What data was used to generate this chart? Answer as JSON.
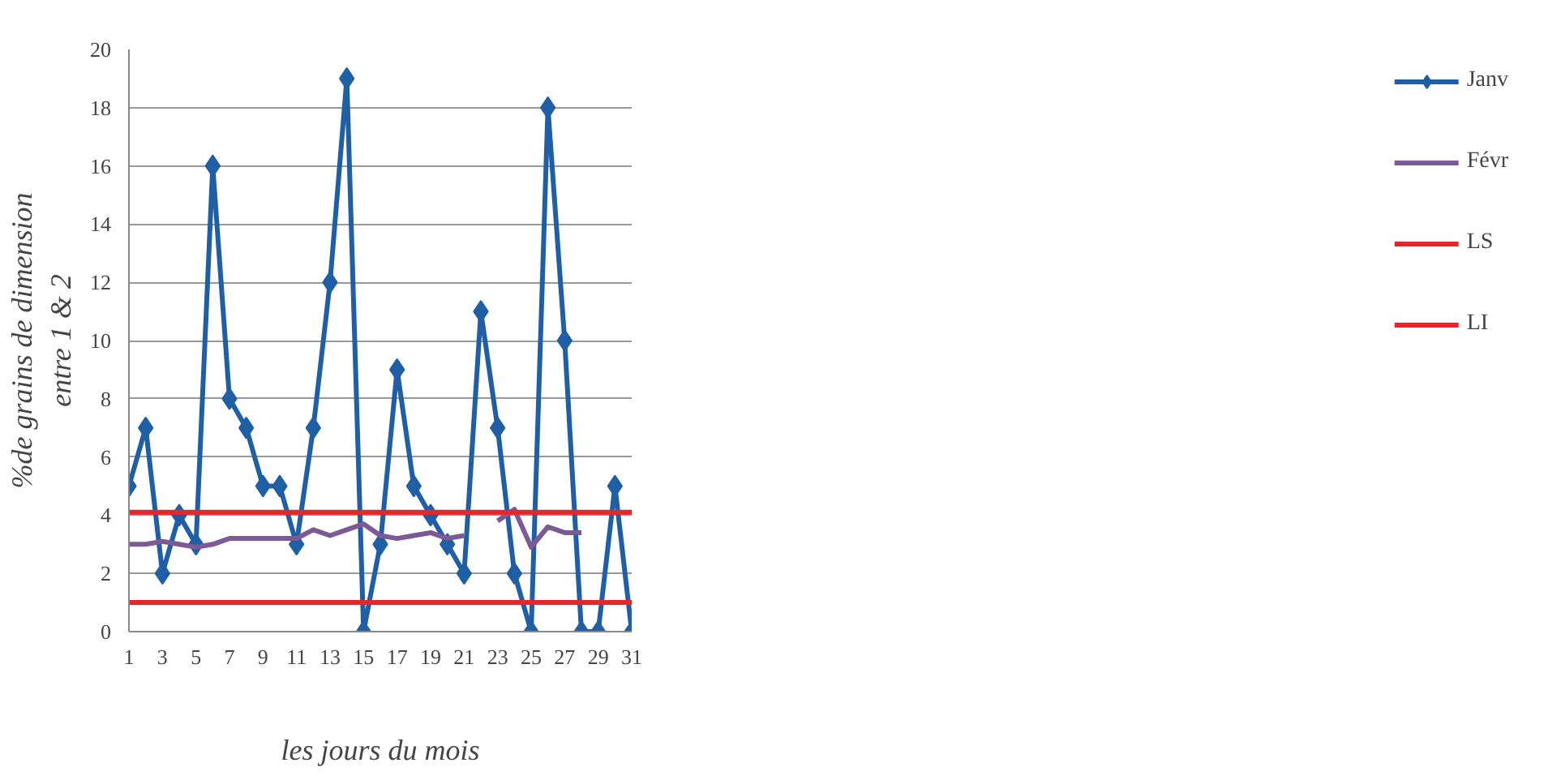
{
  "chart_data": {
    "type": "line",
    "xlabel": "les jours du mois",
    "ylabel": "%de grains de dimension\nentre 1 & 2",
    "x": [
      1,
      2,
      3,
      4,
      5,
      6,
      7,
      8,
      9,
      10,
      11,
      12,
      13,
      14,
      15,
      16,
      17,
      18,
      19,
      20,
      21,
      22,
      23,
      24,
      25,
      26,
      27,
      28,
      29,
      30,
      31
    ],
    "series": [
      {
        "name": "Janv",
        "color": "#1f5fa6",
        "marker": "diamond",
        "values": [
          5,
          7,
          2,
          4,
          3,
          16,
          8,
          7,
          5,
          5,
          3,
          7,
          12,
          19,
          0,
          3,
          9,
          5,
          4,
          3,
          2,
          11,
          7,
          2,
          0,
          18,
          10,
          0,
          0,
          5,
          0
        ]
      },
      {
        "name": "Févr",
        "color": "#7b5a96",
        "marker": "none",
        "values": [
          3.0,
          3.0,
          3.1,
          3.0,
          2.9,
          3.0,
          3.2,
          3.2,
          3.2,
          3.2,
          3.2,
          3.5,
          3.3,
          3.5,
          3.7,
          3.3,
          3.2,
          3.3,
          3.4,
          3.2,
          3.3,
          null,
          3.8,
          4.2,
          2.9,
          3.6,
          3.4,
          3.4,
          null,
          null,
          null
        ]
      },
      {
        "name": "LS",
        "color": "#e8262a",
        "marker": "none",
        "values": [
          4.1,
          4.1,
          4.1,
          4.1,
          4.1,
          4.1,
          4.1,
          4.1,
          4.1,
          4.1,
          4.1,
          4.1,
          4.1,
          4.1,
          4.1,
          4.1,
          4.1,
          4.1,
          4.1,
          4.1,
          4.1,
          4.1,
          4.1,
          4.1,
          4.1,
          4.1,
          4.1,
          4.1,
          4.1,
          4.1,
          4.1
        ]
      },
      {
        "name": "LI",
        "color": "#e8262a",
        "marker": "none",
        "values": [
          1,
          1,
          1,
          1,
          1,
          1,
          1,
          1,
          1,
          1,
          1,
          1,
          1,
          1,
          1,
          1,
          1,
          1,
          1,
          1,
          1,
          1,
          1,
          1,
          1,
          1,
          1,
          1,
          1,
          1,
          1
        ]
      }
    ],
    "xlim": [
      1,
      31
    ],
    "xticks": [
      1,
      3,
      5,
      7,
      9,
      11,
      13,
      15,
      17,
      19,
      21,
      23,
      25,
      27,
      29,
      31
    ],
    "ylim": [
      0,
      20
    ],
    "yticks": [
      0,
      2,
      4,
      6,
      8,
      10,
      12,
      14,
      16,
      18,
      20
    ],
    "grid": "y",
    "legend": "right",
    "line_style": "solid"
  }
}
